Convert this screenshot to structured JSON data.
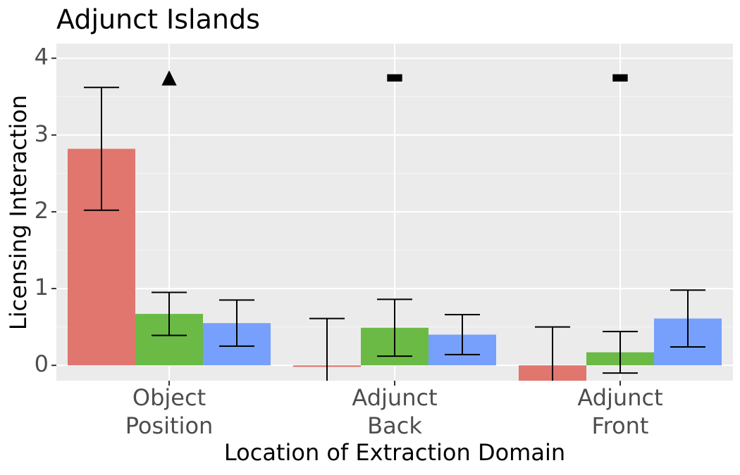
{
  "chart_data": {
    "type": "bar",
    "title": "Adjunct Islands",
    "x_label": "Location of Extraction Domain",
    "y_label": "Licensing Interaction",
    "categories": [
      [
        "Object",
        "Position"
      ],
      [
        "Adjunct",
        "Back"
      ],
      [
        "Adjunct",
        "Front"
      ]
    ],
    "series": [
      {
        "color": "#e0766e",
        "values": [
          2.82,
          -0.02,
          -0.25
        ],
        "errors": [
          0.8,
          0.63,
          0.75
        ]
      },
      {
        "color": "#6bba45",
        "values": [
          0.67,
          0.49,
          0.17
        ],
        "errors": [
          0.28,
          0.37,
          0.27
        ]
      },
      {
        "color": "#77a0fd",
        "values": [
          0.55,
          0.4,
          0.61
        ],
        "errors": [
          0.3,
          0.26,
          0.37
        ]
      }
    ],
    "annotations": [
      "▲",
      "▬",
      "▬"
    ],
    "ylim": [
      -0.2,
      4.19
    ],
    "yticks": [
      0,
      1,
      2,
      3,
      4
    ],
    "grid": true
  }
}
